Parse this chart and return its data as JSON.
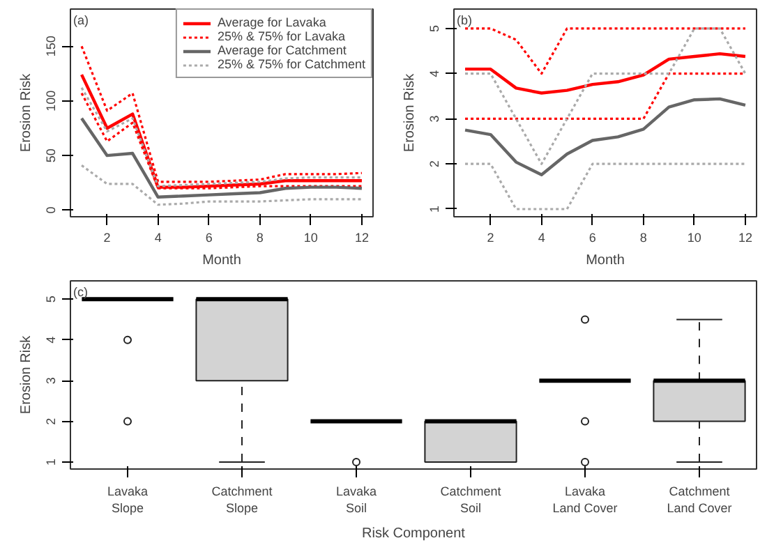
{
  "chart_data": [
    {
      "type": "line",
      "title": "(a)",
      "xlabel": "Month",
      "ylabel": "Erosion Risk",
      "x": [
        1,
        2,
        3,
        4,
        5,
        6,
        7,
        8,
        9,
        10,
        11,
        12
      ],
      "xlim": [
        0.56,
        12.44
      ],
      "ylim": [
        -6,
        184
      ],
      "xticks": [
        2,
        4,
        6,
        8,
        10,
        12
      ],
      "yticks": [
        0,
        50,
        100,
        150
      ],
      "grid": false,
      "legend": "top right",
      "series": [
        {
          "name": "Average for Lavaka",
          "color": "#ff0000",
          "line_style": "solid",
          "values": [
            124,
            75,
            88,
            21,
            21,
            22,
            23,
            24,
            27,
            27,
            27,
            27
          ]
        },
        {
          "name": "25% & 75% for Lavaka",
          "color": "#ff0000",
          "line_style": "dotted",
          "values": [
            150,
            91,
            107,
            26,
            26,
            26,
            27,
            28,
            33,
            33,
            33,
            34
          ]
        },
        {
          "color": "#ff0000",
          "line_style": "dotted",
          "values": [
            107,
            63,
            80,
            20,
            20,
            20,
            21,
            22,
            22,
            22,
            22,
            22
          ]
        },
        {
          "name": "Average for Catchment",
          "color": "#666666",
          "line_style": "solid",
          "values": [
            84,
            50,
            52,
            12,
            13,
            14,
            15,
            16,
            20,
            21,
            21,
            20
          ]
        },
        {
          "name": "25% & 75% for Catchment",
          "color": "#aaaaaa",
          "line_style": "dotted",
          "values": [
            112,
            72,
            84,
            22,
            23,
            24,
            25,
            26,
            29,
            30,
            30,
            30
          ]
        },
        {
          "color": "#aaaaaa",
          "line_style": "dotted",
          "values": [
            41,
            24,
            24,
            5,
            6,
            8,
            8,
            8,
            9,
            10,
            10,
            10
          ]
        }
      ]
    },
    {
      "type": "line",
      "title": "(b)",
      "xlabel": "Month",
      "ylabel": "Erosion Risk",
      "x": [
        1,
        2,
        3,
        4,
        5,
        6,
        7,
        8,
        9,
        10,
        11,
        12
      ],
      "xlim": [
        0.56,
        12.44
      ],
      "ylim": [
        0.83,
        5.43
      ],
      "xticks": [
        2,
        4,
        6,
        8,
        10,
        12
      ],
      "yticks": [
        1,
        2,
        3,
        4,
        5
      ],
      "grid": false,
      "series": [
        {
          "color": "#ff0000",
          "line_style": "solid",
          "values": [
            4.1,
            4.1,
            3.68,
            3.57,
            3.63,
            3.76,
            3.82,
            3.97,
            4.32,
            4.38,
            4.44,
            4.38
          ]
        },
        {
          "color": "#ff0000",
          "line_style": "dotted",
          "values": [
            5,
            5,
            4.75,
            4,
            5,
            5,
            5,
            5,
            5,
            5,
            5,
            5
          ]
        },
        {
          "color": "#ff0000",
          "line_style": "dotted",
          "values": [
            3,
            3,
            3,
            3,
            3,
            3,
            3,
            3,
            4,
            4,
            4,
            4
          ]
        },
        {
          "color": "#666666",
          "line_style": "solid",
          "values": [
            2.75,
            2.65,
            2.04,
            1.76,
            2.22,
            2.52,
            2.6,
            2.77,
            3.26,
            3.42,
            3.44,
            3.3
          ]
        },
        {
          "color": "#aaaaaa",
          "line_style": "dotted",
          "values": [
            4,
            4,
            3,
            2,
            3,
            4,
            4,
            4,
            4,
            5,
            5,
            4
          ]
        },
        {
          "color": "#aaaaaa",
          "line_style": "dotted",
          "values": [
            2,
            2,
            1,
            1,
            1,
            2,
            2,
            2,
            2,
            2,
            2,
            2
          ]
        }
      ]
    },
    {
      "type": "box",
      "title": "(c)",
      "xlabel": "Risk Component",
      "ylabel": "Erosion Risk",
      "categories": [
        "Lavaka\nSlope",
        "Catchment\nSlope",
        "Lavaka\nSoil",
        "Catchment\nSoil",
        "Lavaka\nLand Cover",
        "Catchment\nLand Cover"
      ],
      "ylim": [
        0.83,
        5.45
      ],
      "yticks": [
        1,
        2,
        3,
        4,
        5
      ],
      "grid": false,
      "series": [
        {
          "color": "#d3d3d3",
          "boxes": [
            {
              "low": 5,
              "q1": 5,
              "median": 5,
              "q3": 5,
              "high": 5,
              "outliers": [
                4,
                2
              ]
            },
            {
              "low": 1,
              "q1": 3,
              "median": 5,
              "q3": 5,
              "high": 5
            },
            {
              "low": 2,
              "q1": 2,
              "median": 2,
              "q3": 2,
              "high": 2,
              "outliers": [
                1
              ]
            },
            {
              "low": 1,
              "q1": 1,
              "median": 2,
              "q3": 2,
              "high": 2
            },
            {
              "low": 3,
              "q1": 3,
              "median": 3,
              "q3": 3,
              "high": 3,
              "outliers": [
                4.5,
                2,
                1
              ]
            },
            {
              "low": 1,
              "q1": 2,
              "median": 3,
              "q3": 3,
              "high": 4.5
            }
          ]
        }
      ]
    }
  ]
}
